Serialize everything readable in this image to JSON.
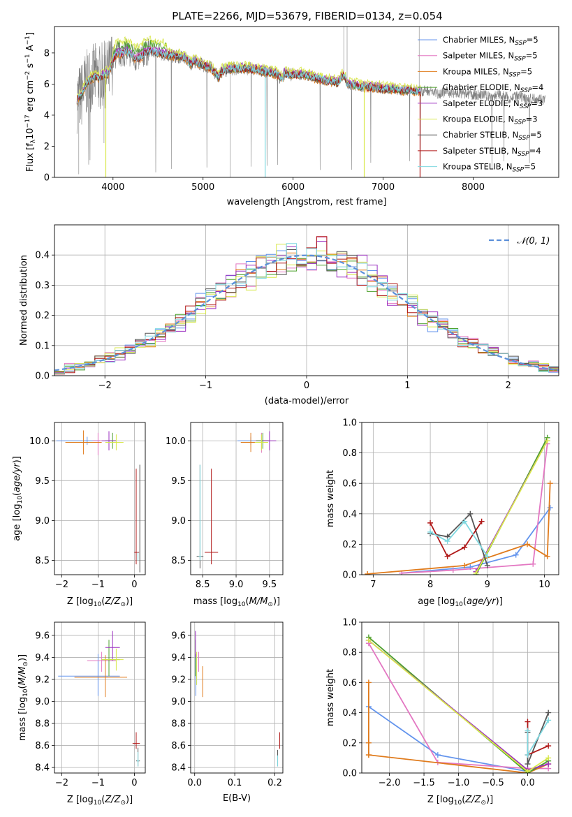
{
  "figure": {
    "title": "PLATE=2266, MJD=53679, FIBERID=0134, z=0.054"
  },
  "colors": {
    "Chabrier MILES": "#6495ED",
    "Salpeter MILES": "#E377C2",
    "Kroupa MILES": "#E07B1C",
    "Chabrier ELODIE": "#4CA02C",
    "Salpeter ELODIE": "#9B2FC0",
    "Kroupa ELODIE": "#D8E84A",
    "Chabrier STELIB": "#555555",
    "Salpeter STELIB": "#B01818",
    "Kroupa STELIB": "#7FD8E0",
    "data": "#808080",
    "normal": "#5B8FD9"
  },
  "chart_data": [
    {
      "id": "spectrum",
      "type": "line",
      "xlabel": "wavelength [Angstrom, rest frame]",
      "ylabel": "Flux [f_λ10⁻¹⁷ erg cm⁻² s⁻¹ A⁻¹]",
      "xlim": [
        3350,
        8950
      ],
      "ylim": [
        0,
        9.7
      ],
      "xticks": [
        4000,
        5000,
        6000,
        7000,
        8000
      ],
      "yticks": [
        0,
        2,
        4,
        6,
        8
      ],
      "grid": false,
      "legend": "right",
      "legend_entries": [
        {
          "name": "Chabrier MILES",
          "suffix": "5"
        },
        {
          "name": "Salpeter MILES",
          "suffix": "5"
        },
        {
          "name": "Kroupa MILES",
          "suffix": "5"
        },
        {
          "name": "Chabrier ELODIE",
          "suffix": "4"
        },
        {
          "name": "Salpeter ELODIE",
          "suffix": "3"
        },
        {
          "name": "Kroupa ELODIE",
          "suffix": "3"
        },
        {
          "name": "Chabrier STELIB",
          "suffix": "5"
        },
        {
          "name": "Salpeter STELIB",
          "suffix": "4"
        },
        {
          "name": "Kroupa STELIB",
          "suffix": "5"
        }
      ],
      "data_series": {
        "x": [
          3600,
          3650,
          3700,
          3750,
          3800,
          3850,
          3900,
          3950,
          4000,
          4050,
          4100,
          4150,
          4200,
          4250,
          4300,
          4350,
          4400,
          4450,
          4500,
          4600,
          4700,
          4800,
          4861,
          4900,
          5000,
          5100,
          5175,
          5200,
          5300,
          5400,
          5500,
          5600,
          5700,
          5800,
          5890,
          5900,
          6000,
          6100,
          6200,
          6300,
          6400,
          6500,
          6563,
          6600,
          6700,
          6800,
          6900,
          7000,
          7100,
          7200,
          7300,
          7400,
          7500,
          7600,
          7700,
          7800,
          7900,
          8000,
          8100,
          8200,
          8300,
          8400,
          8500,
          8600,
          8700,
          8800
        ],
        "y": [
          5.0,
          5.3,
          6.0,
          6.3,
          6.5,
          6.4,
          6.6,
          6.7,
          7.6,
          8.0,
          7.9,
          8.1,
          7.9,
          7.6,
          7.7,
          8.0,
          8.1,
          8.1,
          8.0,
          7.9,
          7.8,
          7.7,
          7.3,
          7.5,
          7.2,
          7.0,
          6.4,
          6.8,
          7.0,
          7.0,
          7.0,
          6.9,
          6.8,
          6.7,
          6.3,
          6.7,
          6.6,
          6.6,
          6.5,
          6.3,
          6.2,
          6.1,
          6.6,
          6.0,
          5.9,
          5.8,
          5.8,
          5.7,
          5.7,
          5.6,
          5.6,
          5.5,
          5.6,
          5.4,
          5.5,
          5.4,
          5.4,
          5.3,
          5.3,
          5.2,
          5.3,
          5.1,
          5.2,
          5.0,
          5.1,
          5.0
        ]
      }
    },
    {
      "id": "residuals",
      "type": "histogram",
      "xlabel": "(data-model)/error",
      "ylabel": "Normed distribution",
      "xlim": [
        -2.5,
        2.5
      ],
      "ylim": [
        0,
        0.5
      ],
      "xticks": [
        -2,
        -1,
        0,
        1,
        2
      ],
      "yticks": [
        0.0,
        0.1,
        0.2,
        0.3,
        0.4
      ],
      "grid": true,
      "legend": "top-right",
      "legend_label": "𝒩(0, 1)",
      "bin_width": 0.1
    },
    {
      "id": "age_vs_Z",
      "type": "scatter",
      "xlabel": "Z [log₁₀(Z/Z☉)]",
      "ylabel": "age  [log₁₀(age/yr)]",
      "xlim": [
        -2.2,
        0.3
      ],
      "ylim": [
        8.32,
        10.23
      ],
      "xticks": [
        -2,
        -1,
        0
      ],
      "yticks": [
        8.5,
        9.0,
        9.5,
        10.0
      ],
      "grid": true,
      "points": [
        {
          "m": "Chabrier MILES",
          "x": -1.3,
          "y": 10.0,
          "xl": 0.85,
          "xh": 0.35,
          "yl": 0.05,
          "yh": 0.05
        },
        {
          "m": "Salpeter MILES",
          "x": -1.0,
          "y": 10.0,
          "xl": 0.15,
          "xh": 0.1,
          "yl": 0.18,
          "yh": 0.1
        },
        {
          "m": "Kroupa MILES",
          "x": -1.4,
          "y": 9.98,
          "xl": 0.5,
          "xh": 0.5,
          "yl": 0.15,
          "yh": 0.15
        },
        {
          "m": "Chabrier ELODIE",
          "x": -0.6,
          "y": 10.0,
          "xl": 0.2,
          "xh": 0.1,
          "yl": 0.1,
          "yh": 0.1
        },
        {
          "m": "Salpeter ELODIE",
          "x": -0.7,
          "y": 10.0,
          "xl": 0.2,
          "xh": 0.2,
          "yl": 0.12,
          "yh": 0.12
        },
        {
          "m": "Kroupa ELODIE",
          "x": -0.5,
          "y": 9.98,
          "xl": 0.3,
          "xh": 0.2,
          "yl": 0.1,
          "yh": 0.1
        },
        {
          "m": "Chabrier STELIB",
          "x": 0.15,
          "y": 8.6,
          "xl": 0.0,
          "xh": 0.0,
          "yl": 0.25,
          "yh": 1.1
        },
        {
          "m": "Salpeter STELIB",
          "x": 0.05,
          "y": 8.6,
          "xl": 0.05,
          "xh": 0.08,
          "yl": 0.15,
          "yh": 1.05
        },
        {
          "m": "Kroupa STELIB",
          "x": 0.1,
          "y": 8.55,
          "xl": 0.0,
          "xh": 0.0,
          "yl": 0.05,
          "yh": 0.05
        }
      ]
    },
    {
      "id": "age_vs_mass",
      "type": "scatter",
      "xlabel": "mass [log₁₀(M/M☉)]",
      "ylabel": "",
      "xlim": [
        8.32,
        9.7
      ],
      "ylim": [
        8.32,
        10.23
      ],
      "xticks": [
        8.5,
        9.0,
        9.5
      ],
      "yticks": [
        8.5,
        9.0,
        9.5,
        10.0
      ],
      "grid": true,
      "points": [
        {
          "m": "Chabrier MILES",
          "x": 9.22,
          "y": 10.0,
          "xl": 0.2,
          "xh": 0.2,
          "yl": 0.05,
          "yh": 0.05
        },
        {
          "m": "Salpeter MILES",
          "x": 9.38,
          "y": 10.0,
          "xl": 0.1,
          "xh": 0.1,
          "yl": 0.15,
          "yh": 0.1
        },
        {
          "m": "Kroupa MILES",
          "x": 9.22,
          "y": 9.98,
          "xl": 0.15,
          "xh": 0.2,
          "yl": 0.12,
          "yh": 0.12
        },
        {
          "m": "Chabrier ELODIE",
          "x": 9.4,
          "y": 10.0,
          "xl": 0.1,
          "xh": 0.1,
          "yl": 0.1,
          "yh": 0.1
        },
        {
          "m": "Salpeter ELODIE",
          "x": 9.5,
          "y": 10.0,
          "xl": 0.1,
          "xh": 0.1,
          "yl": 0.12,
          "yh": 0.12
        },
        {
          "m": "Kroupa ELODIE",
          "x": 9.38,
          "y": 9.98,
          "xl": 0.1,
          "xh": 0.1,
          "yl": 0.1,
          "yh": 0.1
        },
        {
          "m": "Chabrier STELIB",
          "x": 8.46,
          "y": 8.55,
          "xl": 0.05,
          "xh": 0.05,
          "yl": 0.15,
          "yh": 1.15
        },
        {
          "m": "Salpeter STELIB",
          "x": 8.63,
          "y": 8.6,
          "xl": 0.1,
          "xh": 0.1,
          "yl": 0.15,
          "yh": 1.05
        },
        {
          "m": "Kroupa STELIB",
          "x": 8.46,
          "y": 8.55,
          "xl": 0.02,
          "xh": 0.02,
          "yl": 0.05,
          "yh": 1.15
        }
      ]
    },
    {
      "id": "weight_vs_age",
      "type": "line",
      "xlabel": "age  [log₁₀(age/yr)]",
      "ylabel": "mass weight",
      "xlim": [
        6.8,
        10.25
      ],
      "ylim": [
        0,
        1
      ],
      "xticks": [
        7,
        8,
        9,
        10
      ],
      "yticks": [
        0.0,
        0.2,
        0.4,
        0.6,
        0.8,
        1.0
      ],
      "grid": true,
      "series": [
        {
          "m": "Chabrier MILES",
          "x": [
            7.5,
            8.7,
            9.5,
            10.1
          ],
          "y": [
            0.01,
            0.05,
            0.13,
            0.44
          ]
        },
        {
          "m": "Salpeter MILES",
          "x": [
            7.5,
            8.4,
            9.8,
            10.05
          ],
          "y": [
            0.01,
            0.03,
            0.07,
            0.86
          ]
        },
        {
          "m": "Kroupa MILES",
          "x": [
            6.9,
            8.6,
            9.7,
            10.05,
            10.1
          ],
          "y": [
            0.005,
            0.06,
            0.2,
            0.12,
            0.6
          ]
        },
        {
          "m": "Chabrier ELODIE",
          "x": [
            8.8,
            10.05
          ],
          "y": [
            0.0,
            0.9
          ]
        },
        {
          "m": "Salpeter ELODIE",
          "x": [
            8.8,
            10.05
          ],
          "y": [
            0.02,
            0.88
          ]
        },
        {
          "m": "Kroupa ELODIE",
          "x": [
            8.8,
            10.05
          ],
          "y": [
            0.01,
            0.88
          ]
        },
        {
          "m": "Chabrier STELIB",
          "x": [
            8.0,
            8.3,
            8.7,
            9.0
          ],
          "y": [
            0.27,
            0.25,
            0.4,
            0.06
          ]
        },
        {
          "m": "Salpeter STELIB",
          "x": [
            8.0,
            8.3,
            8.6,
            8.9
          ],
          "y": [
            0.34,
            0.12,
            0.18,
            0.35
          ]
        },
        {
          "m": "Kroupa STELIB",
          "x": [
            8.0,
            8.3,
            8.6,
            9.0
          ],
          "y": [
            0.28,
            0.22,
            0.35,
            0.12
          ]
        }
      ]
    },
    {
      "id": "mass_vs_Z",
      "type": "scatter",
      "xlabel": "Z [log₁₀(Z/Z☉)]",
      "ylabel": "mass [log₁₀(M/M☉)]",
      "xlim": [
        -2.2,
        0.3
      ],
      "ylim": [
        8.35,
        9.72
      ],
      "xticks": [
        -2,
        -1,
        0
      ],
      "yticks": [
        8.4,
        8.6,
        8.8,
        9.0,
        9.2,
        9.4,
        9.6
      ],
      "grid": true,
      "points": [
        {
          "m": "Chabrier MILES",
          "x": -1.0,
          "y": 9.23,
          "xl": 1.1,
          "xh": 0.6,
          "yl": 0.18,
          "yh": 0.2
        },
        {
          "m": "Salpeter MILES",
          "x": -0.9,
          "y": 9.37,
          "xl": 0.4,
          "xh": 0.4,
          "yl": 0.1,
          "yh": 0.08
        },
        {
          "m": "Kroupa MILES",
          "x": -0.8,
          "y": 9.22,
          "xl": 0.85,
          "xh": 0.6,
          "yl": 0.18,
          "yh": 0.2
        },
        {
          "m": "Chabrier ELODIE",
          "x": -0.7,
          "y": 9.38,
          "xl": 0.2,
          "xh": 0.3,
          "yl": 0.15,
          "yh": 0.18
        },
        {
          "m": "Salpeter ELODIE",
          "x": -0.6,
          "y": 9.49,
          "xl": 0.2,
          "xh": 0.2,
          "yl": 0.12,
          "yh": 0.15
        },
        {
          "m": "Kroupa ELODIE",
          "x": -0.5,
          "y": 9.38,
          "xl": 0.4,
          "xh": 0.2,
          "yl": 0.1,
          "yh": 0.1
        },
        {
          "m": "Chabrier STELIB",
          "x": 0.1,
          "y": 8.46,
          "xl": 0.05,
          "xh": 0.05,
          "yl": 0.05,
          "yh": 0.12
        },
        {
          "m": "Salpeter STELIB",
          "x": 0.05,
          "y": 8.62,
          "xl": 0.1,
          "xh": 0.1,
          "yl": 0.05,
          "yh": 0.1
        },
        {
          "m": "Kroupa STELIB",
          "x": 0.1,
          "y": 8.46,
          "xl": 0.03,
          "xh": 0.03,
          "yl": 0.05,
          "yh": 0.08
        }
      ]
    },
    {
      "id": "mass_vs_ebv",
      "type": "scatter",
      "xlabel": "E(B-V)",
      "ylabel": "",
      "xlim": [
        -0.01,
        0.22
      ],
      "ylim": [
        8.35,
        9.72
      ],
      "xticks": [
        0.0,
        0.1,
        0.2
      ],
      "yticks": [
        8.4,
        8.6,
        8.8,
        9.0,
        9.2,
        9.4,
        9.6
      ],
      "grid": true,
      "points": [
        {
          "m": "Chabrier MILES",
          "x": 0.003,
          "y": 9.23,
          "xl": 0.0,
          "xh": 0.0,
          "yl": 0.18,
          "yh": 0.2
        },
        {
          "m": "Salpeter MILES",
          "x": 0.01,
          "y": 9.37,
          "xl": 0.0,
          "xh": 0.0,
          "yl": 0.1,
          "yh": 0.08
        },
        {
          "m": "Kroupa MILES",
          "x": 0.02,
          "y": 9.22,
          "xl": 0.0,
          "xh": 0.0,
          "yl": 0.18,
          "yh": 0.1
        },
        {
          "m": "Chabrier ELODIE",
          "x": 0.002,
          "y": 9.38,
          "xl": 0.0,
          "xh": 0.0,
          "yl": 0.15,
          "yh": 0.18
        },
        {
          "m": "Salpeter ELODIE",
          "x": 0.002,
          "y": 9.52,
          "xl": 0.0,
          "xh": 0.0,
          "yl": 0.12,
          "yh": 0.12
        },
        {
          "m": "Kroupa ELODIE",
          "x": 0.005,
          "y": 9.3,
          "xl": 0.0,
          "xh": 0.0,
          "yl": 0.15,
          "yh": 0.15
        },
        {
          "m": "Chabrier STELIB",
          "x": 0.207,
          "y": 8.46,
          "xl": 0.0,
          "xh": 0.0,
          "yl": 0.05,
          "yh": 0.1
        },
        {
          "m": "Salpeter STELIB",
          "x": 0.212,
          "y": 8.62,
          "xl": 0.0,
          "xh": 0.0,
          "yl": 0.05,
          "yh": 0.1
        },
        {
          "m": "Kroupa STELIB",
          "x": 0.207,
          "y": 8.46,
          "xl": 0.0,
          "xh": 0.0,
          "yl": 0.05,
          "yh": 0.05
        }
      ]
    },
    {
      "id": "weight_vs_Z",
      "type": "line",
      "xlabel": "Z [log₁₀(Z/Z☉)]",
      "ylabel": "mass weight",
      "xlim": [
        -2.4,
        0.45
      ],
      "ylim": [
        0,
        1
      ],
      "xticks": [
        -2.0,
        -1.5,
        -1.0,
        -0.5,
        0.0
      ],
      "yticks": [
        0.0,
        0.2,
        0.4,
        0.6,
        0.8,
        1.0
      ],
      "grid": true,
      "series": [
        {
          "m": "Chabrier MILES",
          "x": [
            -2.3,
            -1.3,
            0.0,
            0.0
          ],
          "y": [
            0.44,
            0.12,
            0.01,
            0.02
          ]
        },
        {
          "m": "Salpeter MILES",
          "x": [
            -2.3,
            -1.3,
            0.0,
            0.3
          ],
          "y": [
            0.86,
            0.07,
            0.03,
            0.03
          ]
        },
        {
          "m": "Kroupa MILES",
          "x": [
            -2.3,
            -2.3,
            -2.3,
            -2.3,
            0.0,
            0.3
          ],
          "y": [
            0.6,
            0.2,
            0.12,
            0.12,
            0.0,
            0.06
          ]
        },
        {
          "m": "Chabrier ELODIE",
          "x": [
            -2.3,
            0.0,
            0.3
          ],
          "y": [
            0.9,
            0.0,
            0.08
          ]
        },
        {
          "m": "Salpeter ELODIE",
          "x": [
            -2.3,
            0.0,
            0.3
          ],
          "y": [
            0.88,
            0.02,
            0.06
          ]
        },
        {
          "m": "Kroupa ELODIE",
          "x": [
            -2.3,
            0.0,
            0.3
          ],
          "y": [
            0.88,
            0.01,
            0.1
          ]
        },
        {
          "m": "Chabrier STELIB",
          "x": [
            0.0,
            0.0,
            0.3
          ],
          "y": [
            0.27,
            0.06,
            0.4
          ]
        },
        {
          "m": "Salpeter STELIB",
          "x": [
            0.0,
            0.0,
            0.3
          ],
          "y": [
            0.34,
            0.12,
            0.18
          ]
        },
        {
          "m": "Kroupa STELIB",
          "x": [
            0.0,
            0.0,
            0.3
          ],
          "y": [
            0.28,
            0.12,
            0.35
          ]
        }
      ]
    }
  ]
}
